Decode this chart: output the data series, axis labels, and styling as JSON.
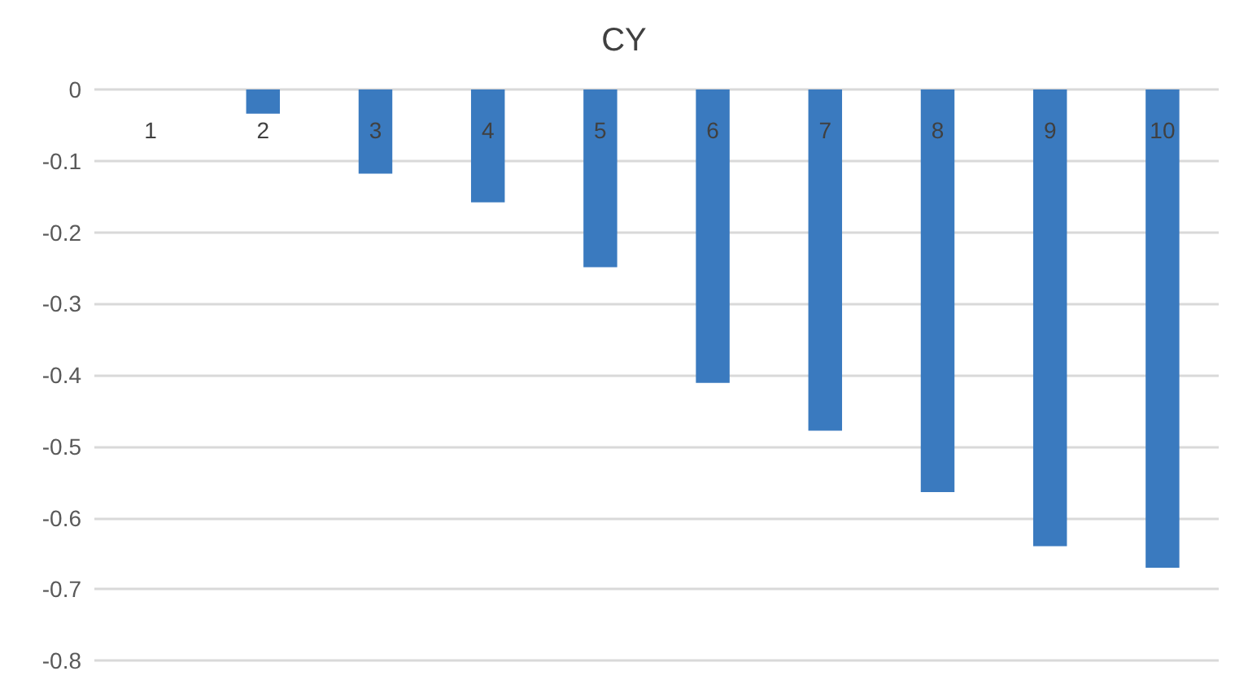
{
  "chart_data": {
    "type": "bar",
    "title": "CY",
    "categories": [
      "1",
      "2",
      "3",
      "4",
      "5",
      "6",
      "7",
      "8",
      "9",
      "10"
    ],
    "values": [
      0,
      -0.034,
      -0.118,
      -0.158,
      -0.249,
      -0.411,
      -0.478,
      -0.564,
      -0.64,
      -0.67
    ],
    "color": "#3a7abf",
    "ylim": [
      -0.8,
      0
    ],
    "yticks": [
      0,
      -0.1,
      -0.2,
      -0.3,
      -0.4,
      -0.5,
      -0.6,
      -0.7,
      -0.8
    ],
    "grid": "y"
  }
}
